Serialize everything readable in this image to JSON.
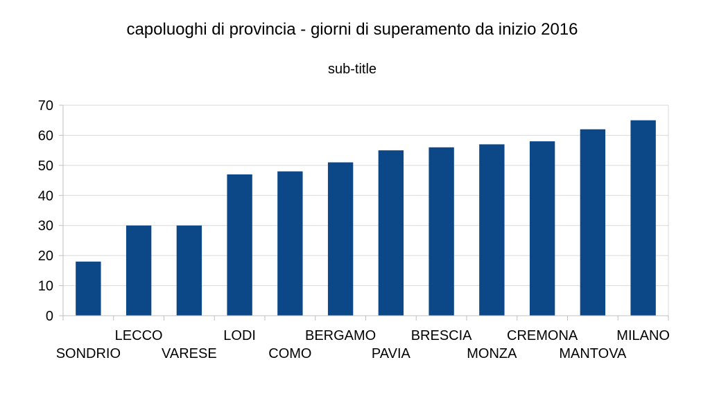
{
  "chart_data": {
    "type": "bar",
    "title": "capoluoghi di provincia - giorni di superamento da inizio 2016",
    "subtitle": "sub-title",
    "xlabel": "",
    "ylabel": "",
    "categories": [
      "SONDRIO",
      "LECCO",
      "VARESE",
      "LODI",
      "COMO",
      "BERGAMO",
      "PAVIA",
      "BRESCIA",
      "MONZA",
      "CREMONA",
      "MANTOVA",
      "MILANO"
    ],
    "values": [
      18,
      30,
      30,
      47,
      48,
      51,
      55,
      56,
      57,
      58,
      62,
      65
    ],
    "ylim": [
      0,
      70
    ],
    "yticks": [
      0,
      10,
      20,
      30,
      40,
      50,
      60,
      70
    ],
    "grid": true,
    "legend": "none",
    "bar_color": "#0c4887",
    "grid_color": "#d9d9d9",
    "axis_color": "#bfbfbf"
  }
}
